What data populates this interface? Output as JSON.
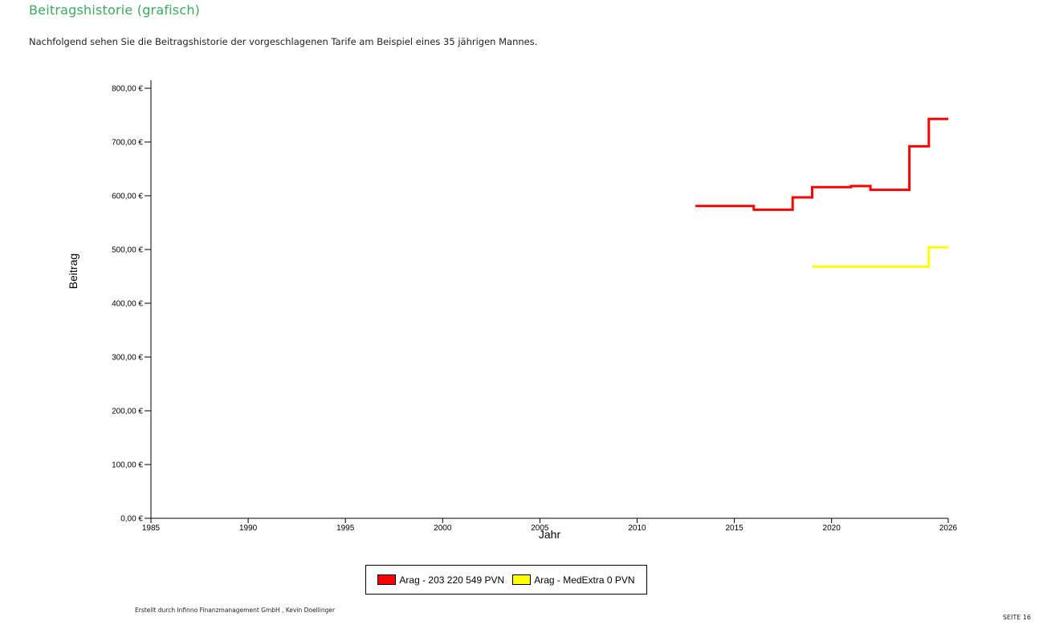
{
  "page": {
    "title": "Beitragshistorie (grafisch)",
    "intro": "Nachfolgend sehen Sie die Beitragshistorie der vorgeschlagenen Tarife am Beispiel eines 35 jährigen Mannes.",
    "footer_credit": "Erstellt durch Infinno Finanzmanagement GmbH , Kevin Doellinger",
    "page_number": "SEITE 16",
    "title_color": "#3aaa5e"
  },
  "chart_data": {
    "type": "line",
    "step": true,
    "title": "",
    "xlabel": "Jahr",
    "ylabel": "Beitrag",
    "xlim": [
      1985,
      2026
    ],
    "ylim": [
      0,
      800
    ],
    "x_ticks": [
      {
        "value": 1985,
        "label": "1985"
      },
      {
        "value": 1990,
        "label": "1990"
      },
      {
        "value": 1995,
        "label": "1995"
      },
      {
        "value": 2000,
        "label": "2000"
      },
      {
        "value": 2005,
        "label": "2005"
      },
      {
        "value": 2010,
        "label": "2010"
      },
      {
        "value": 2015,
        "label": "2015"
      },
      {
        "value": 2020,
        "label": "2020"
      },
      {
        "value": 2026,
        "label": "2026"
      }
    ],
    "y_ticks": [
      {
        "value": 0,
        "label": "0,00 €"
      },
      {
        "value": 100,
        "label": "100,00 €"
      },
      {
        "value": 200,
        "label": "200,00 €"
      },
      {
        "value": 300,
        "label": "300,00 €"
      },
      {
        "value": 400,
        "label": "400,00 €"
      },
      {
        "value": 500,
        "label": "500,00 €"
      },
      {
        "value": 600,
        "label": "600,00 €"
      },
      {
        "value": 700,
        "label": "700,00 €"
      },
      {
        "value": 800,
        "label": "800,00 €"
      }
    ],
    "grid": false,
    "legend_position": "bottom",
    "series": [
      {
        "name": "Arag - 203 220 549 PVN",
        "color": "#ff0000",
        "x": [
          2013,
          2016,
          2018,
          2019,
          2021,
          2022,
          2024,
          2025,
          2026
        ],
        "y": [
          581,
          574,
          597,
          616,
          618,
          611,
          692,
          743,
          743
        ]
      },
      {
        "name": "Arag - MedExtra 0 PVN",
        "color": "#ffff00",
        "x": [
          2019,
          2025,
          2026
        ],
        "y": [
          468,
          504,
          504
        ]
      }
    ]
  }
}
